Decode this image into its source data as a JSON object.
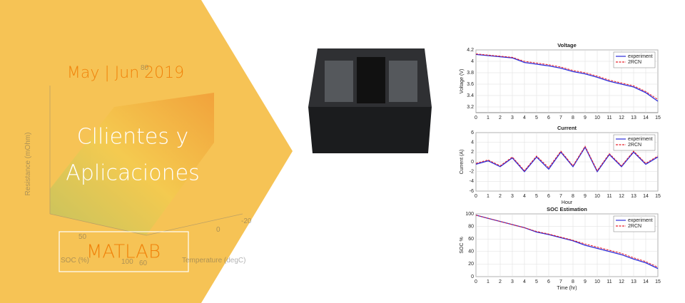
{
  "banner": {
    "date": "May | Jun 2019",
    "title_lines": [
      "Cllientes y",
      "Aplicaciones"
    ],
    "button": "MATLAB"
  },
  "background_plot": {
    "z_label": "Resistance (mOhm)",
    "x_label": "SOC (%)",
    "y_label": "Temperature (degC)",
    "tick_labels": [
      "80",
      "50",
      "100",
      "0",
      "-20",
      "60"
    ]
  },
  "charts": [
    {
      "type": "line",
      "title": "Voltage",
      "ylabel": "Voltage (V)",
      "x": [
        0,
        1,
        2,
        3,
        4,
        5,
        6,
        7,
        8,
        9,
        10,
        11,
        12,
        13,
        14,
        15
      ],
      "series": [
        {
          "name": "experiment",
          "color": "#2b2bd9",
          "values": [
            4.12,
            4.1,
            4.08,
            4.06,
            3.98,
            3.95,
            3.92,
            3.88,
            3.82,
            3.78,
            3.72,
            3.65,
            3.6,
            3.55,
            3.45,
            3.3
          ]
        },
        {
          "name": "2RCN",
          "color": "#e8202a",
          "values": [
            4.13,
            4.11,
            4.09,
            4.07,
            4.0,
            3.97,
            3.94,
            3.9,
            3.84,
            3.8,
            3.74,
            3.67,
            3.62,
            3.57,
            3.47,
            3.33
          ]
        }
      ],
      "xlim": [
        0,
        15
      ],
      "xticks": [
        0,
        1,
        2,
        3,
        4,
        5,
        6,
        7,
        8,
        9,
        10,
        11,
        12,
        13,
        14,
        15
      ],
      "ylim": [
        3.1,
        4.2
      ],
      "yticks": [
        3.2,
        3.4,
        3.6,
        3.8,
        4,
        4.2
      ]
    },
    {
      "type": "line",
      "title": "Current",
      "ylabel": "Current (A)",
      "xlabel": "Hour",
      "x": [
        0,
        1,
        2,
        3,
        4,
        5,
        6,
        7,
        8,
        9,
        10,
        11,
        12,
        13,
        14,
        15
      ],
      "series": [
        {
          "name": "experiment",
          "color": "#2b2bd9",
          "values": [
            -0.5,
            0.2,
            -1,
            0.8,
            -2,
            1,
            -1.5,
            2,
            -1,
            3,
            -2,
            1.5,
            -1,
            2,
            -0.5,
            1
          ]
        },
        {
          "name": "2RCN",
          "color": "#e8202a",
          "values": [
            -0.3,
            0.4,
            -0.8,
            1,
            -1.8,
            1.2,
            -1.2,
            2.2,
            -0.8,
            3.2,
            -1.8,
            1.7,
            -0.8,
            2.2,
            -0.3,
            1.2
          ]
        }
      ],
      "xlim": [
        0,
        15
      ],
      "xticks": [
        0,
        1,
        2,
        3,
        4,
        5,
        6,
        7,
        8,
        9,
        10,
        11,
        12,
        13,
        14,
        15
      ],
      "ylim": [
        -6,
        6
      ],
      "yticks": [
        -6,
        -4,
        -2,
        0,
        2,
        4,
        6
      ]
    },
    {
      "type": "line",
      "title": "SOC Estimation",
      "ylabel": "SOC %",
      "xlabel": "Time (hr)",
      "x": [
        0,
        1,
        2,
        3,
        4,
        5,
        6,
        7,
        8,
        9,
        10,
        11,
        12,
        13,
        14,
        15
      ],
      "series": [
        {
          "name": "experiment",
          "color": "#2b2bd9",
          "values": [
            98,
            93,
            88,
            83,
            78,
            71,
            67,
            62,
            57,
            50,
            45,
            40,
            35,
            28,
            22,
            13
          ]
        },
        {
          "name": "2RCN",
          "color": "#e8202a",
          "values": [
            98,
            93,
            88,
            83,
            78,
            72,
            68,
            63,
            58,
            52,
            47,
            42,
            37,
            30,
            24,
            15
          ]
        }
      ],
      "xlim": [
        0,
        15
      ],
      "xticks": [
        0,
        1,
        2,
        3,
        4,
        5,
        6,
        7,
        8,
        9,
        10,
        11,
        12,
        13,
        14,
        15
      ],
      "ylim": [
        0,
        100
      ],
      "yticks": [
        0,
        20,
        40,
        60,
        80,
        100
      ]
    }
  ]
}
